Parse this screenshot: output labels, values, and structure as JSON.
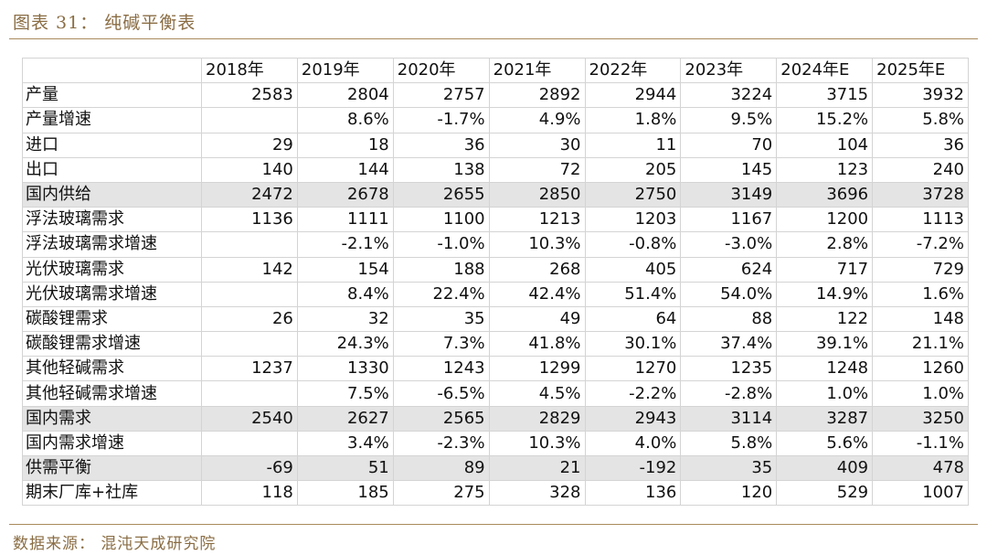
{
  "title": "图表 31： 纯碱平衡表",
  "source": "数据来源： 混沌天成研究院",
  "table": {
    "corner": "",
    "columns": [
      "2018年",
      "2019年",
      "2020年",
      "2021年",
      "2022年",
      "2023年",
      "2024年E",
      "2025年E"
    ],
    "rows": [
      {
        "label": "产量",
        "shaded": false,
        "values": [
          "2583",
          "2804",
          "2757",
          "2892",
          "2944",
          "3224",
          "3715",
          "3932"
        ]
      },
      {
        "label": "产量增速",
        "shaded": false,
        "values": [
          "",
          "8.6%",
          "-1.7%",
          "4.9%",
          "1.8%",
          "9.5%",
          "15.2%",
          "5.8%"
        ]
      },
      {
        "label": "进口",
        "shaded": false,
        "values": [
          "29",
          "18",
          "36",
          "30",
          "11",
          "70",
          "104",
          "36"
        ]
      },
      {
        "label": "出口",
        "shaded": false,
        "values": [
          "140",
          "144",
          "138",
          "72",
          "205",
          "145",
          "123",
          "240"
        ]
      },
      {
        "label": "国内供给",
        "shaded": true,
        "values": [
          "2472",
          "2678",
          "2655",
          "2850",
          "2750",
          "3149",
          "3696",
          "3728"
        ]
      },
      {
        "label": "浮法玻璃需求",
        "shaded": false,
        "values": [
          "1136",
          "1111",
          "1100",
          "1213",
          "1203",
          "1167",
          "1200",
          "1113"
        ]
      },
      {
        "label": "浮法玻璃需求增速",
        "shaded": false,
        "values": [
          "",
          "-2.1%",
          "-1.0%",
          "10.3%",
          "-0.8%",
          "-3.0%",
          "2.8%",
          "-7.2%"
        ]
      },
      {
        "label": "光伏玻璃需求",
        "shaded": false,
        "values": [
          "142",
          "154",
          "188",
          "268",
          "405",
          "624",
          "717",
          "729"
        ]
      },
      {
        "label": "光伏玻璃需求增速",
        "shaded": false,
        "values": [
          "",
          "8.4%",
          "22.4%",
          "42.4%",
          "51.4%",
          "54.0%",
          "14.9%",
          "1.6%"
        ]
      },
      {
        "label": "碳酸锂需求",
        "shaded": false,
        "values": [
          "26",
          "32",
          "35",
          "49",
          "64",
          "88",
          "122",
          "148"
        ]
      },
      {
        "label": "碳酸锂需求增速",
        "shaded": false,
        "values": [
          "",
          "24.3%",
          "7.3%",
          "41.8%",
          "30.1%",
          "37.4%",
          "39.1%",
          "21.1%"
        ]
      },
      {
        "label": "其他轻碱需求",
        "shaded": false,
        "values": [
          "1237",
          "1330",
          "1243",
          "1299",
          "1270",
          "1235",
          "1248",
          "1260"
        ]
      },
      {
        "label": "其他轻碱需求增速",
        "shaded": false,
        "values": [
          "",
          "7.5%",
          "-6.5%",
          "4.5%",
          "-2.2%",
          "-2.8%",
          "1.0%",
          "1.0%"
        ]
      },
      {
        "label": "国内需求",
        "shaded": true,
        "values": [
          "2540",
          "2627",
          "2565",
          "2829",
          "2943",
          "3114",
          "3287",
          "3250"
        ]
      },
      {
        "label": "国内需求增速",
        "shaded": false,
        "values": [
          "",
          "3.4%",
          "-2.3%",
          "10.3%",
          "4.0%",
          "5.8%",
          "5.6%",
          "-1.1%"
        ]
      },
      {
        "label": "供需平衡",
        "shaded": true,
        "values": [
          "-69",
          "51",
          "89",
          "21",
          "-192",
          "35",
          "409",
          "478"
        ]
      },
      {
        "label": "期末厂库+社库",
        "shaded": false,
        "values": [
          "118",
          "185",
          "275",
          "328",
          "136",
          "120",
          "529",
          "1007"
        ]
      }
    ]
  },
  "colors": {
    "accent": "#a98a5b",
    "accent_text": "#8a6d44",
    "shade": "#e4e4e4"
  }
}
